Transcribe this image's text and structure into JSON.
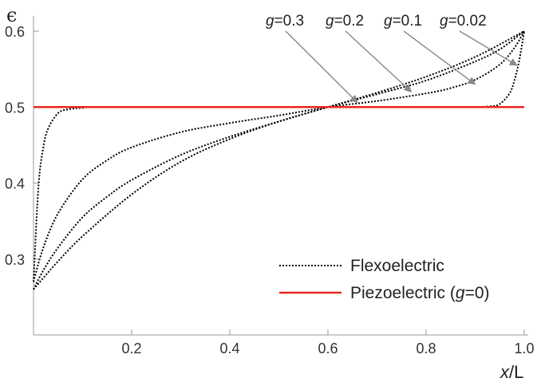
{
  "chart_data": {
    "type": "line",
    "ylabel": "ϵ",
    "xlabel_var": "x",
    "xlabel_unit": "/L",
    "xlim": [
      0,
      1
    ],
    "ylim": [
      0.2,
      0.62
    ],
    "x_ticks": [
      {
        "value": 0.2,
        "label": "0.2"
      },
      {
        "value": 0.4,
        "label": "0.4"
      },
      {
        "value": 0.6,
        "label": "0.6"
      },
      {
        "value": 0.8,
        "label": "0.8"
      },
      {
        "value": 1.0,
        "label": "1.0"
      }
    ],
    "y_ticks": [
      {
        "value": 0.3,
        "label": "0.3"
      },
      {
        "value": 0.4,
        "label": "0.4"
      },
      {
        "value": 0.5,
        "label": "0.5"
      },
      {
        "value": 0.6,
        "label": "0.6"
      }
    ],
    "grid": false,
    "legend_position": "bottom-right",
    "legend": [
      {
        "label": "Flexoelectric",
        "style": "dotted",
        "color": "#000000"
      },
      {
        "label_pre": "Piezoelectric (",
        "label_g": "g",
        "label_post": "=0)",
        "style": "solid",
        "color": "#e8281e"
      }
    ],
    "series": [
      {
        "g": 0.02,
        "style": "dotted",
        "color": "#000000",
        "x": [
          0,
          0.01,
          0.02,
          0.03,
          0.05,
          0.07,
          0.1,
          0.15,
          0.6,
          0.85,
          0.9,
          0.93,
          0.95,
          0.97,
          0.98,
          0.99,
          1.0
        ],
        "y": [
          0.27,
          0.395,
          0.447,
          0.472,
          0.492,
          0.497,
          0.499,
          0.5,
          0.5,
          0.5,
          0.5,
          0.501,
          0.504,
          0.518,
          0.535,
          0.562,
          0.6
        ]
      },
      {
        "g": 0.1,
        "style": "dotted",
        "color": "#000000",
        "x": [
          0,
          0.02,
          0.05,
          0.1,
          0.15,
          0.2,
          0.3,
          0.4,
          0.5,
          0.6,
          0.7,
          0.8,
          0.85,
          0.9,
          0.95,
          0.98,
          1.0
        ],
        "y": [
          0.27,
          0.315,
          0.36,
          0.405,
          0.43,
          0.447,
          0.467,
          0.479,
          0.489,
          0.5,
          0.508,
          0.518,
          0.525,
          0.536,
          0.556,
          0.578,
          0.6
        ]
      },
      {
        "g": 0.2,
        "style": "dotted",
        "color": "#000000",
        "x": [
          0,
          0.02,
          0.05,
          0.1,
          0.15,
          0.2,
          0.3,
          0.4,
          0.5,
          0.6,
          0.7,
          0.8,
          0.9,
          0.95,
          1.0
        ],
        "y": [
          0.26,
          0.285,
          0.315,
          0.355,
          0.382,
          0.404,
          0.437,
          0.461,
          0.481,
          0.5,
          0.517,
          0.535,
          0.56,
          0.576,
          0.6
        ]
      },
      {
        "g": 0.3,
        "style": "dotted",
        "color": "#000000",
        "x": [
          0,
          0.02,
          0.05,
          0.1,
          0.2,
          0.3,
          0.4,
          0.5,
          0.6,
          0.7,
          0.8,
          0.9,
          1.0
        ],
        "y": [
          0.26,
          0.275,
          0.297,
          0.33,
          0.385,
          0.428,
          0.458,
          0.481,
          0.5,
          0.519,
          0.54,
          0.566,
          0.6
        ]
      },
      {
        "g": 0,
        "style": "solid",
        "color": "#e8281e",
        "x": [
          0,
          1.0
        ],
        "y": [
          0.5,
          0.5
        ]
      }
    ],
    "annotations": [
      {
        "var": "g",
        "text": "=0.3",
        "target_x": 0.66,
        "target_y": 0.506
      },
      {
        "var": "g",
        "text": "=0.2",
        "target_x": 0.77,
        "target_y": 0.52
      },
      {
        "var": "g",
        "text": "=0.1",
        "target_x": 0.9,
        "target_y": 0.53
      },
      {
        "var": "g",
        "text": "=0.02",
        "target_x": 0.985,
        "target_y": 0.555
      }
    ],
    "colors": {
      "flexo": "#000000",
      "piezo": "#e8281e",
      "arrow": "#888888"
    }
  }
}
